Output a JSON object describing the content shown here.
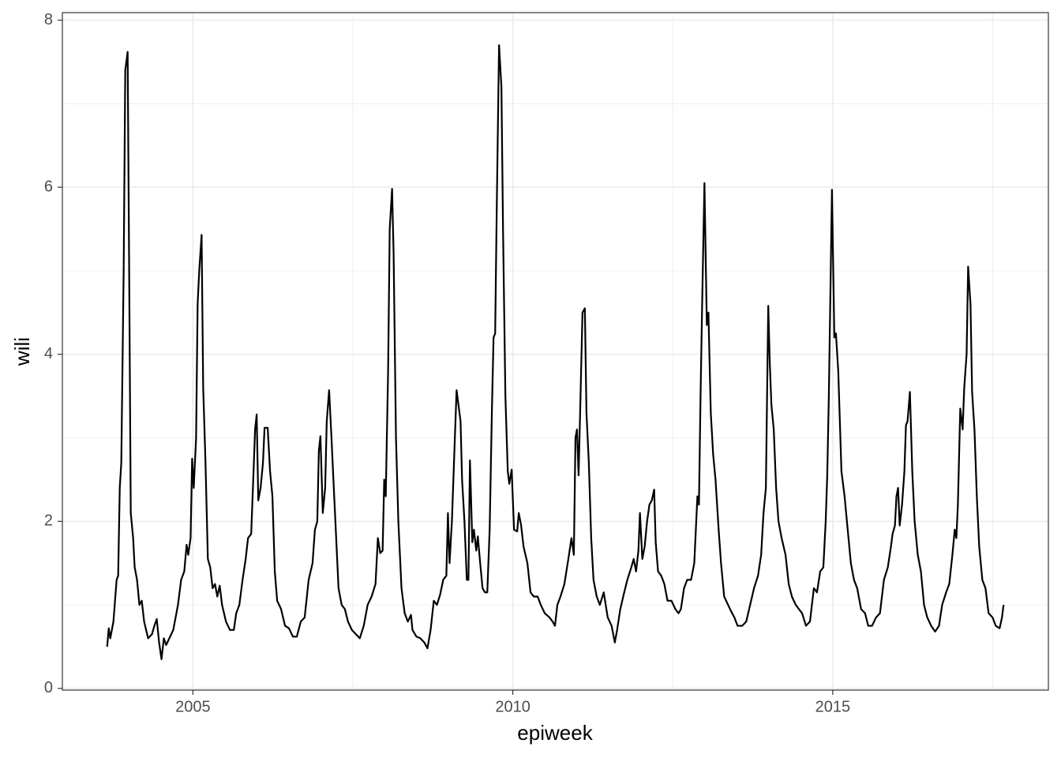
{
  "chart_data": {
    "type": "line",
    "xlabel": "epiweek",
    "ylabel": "wili",
    "color": "#000000",
    "grid": true,
    "xlim": [
      2002.96,
      2018.37
    ],
    "xticks": [
      2005,
      2010,
      2015
    ],
    "xminor": [
      2002.5,
      2007.5,
      2012.5,
      2017.5
    ],
    "ylim": [
      -0.02,
      8.09
    ],
    "yticks": [
      0,
      2,
      4,
      6,
      8
    ],
    "yminor": [
      1,
      3,
      5,
      7
    ],
    "x": [
      2003.66,
      2003.685,
      2003.709,
      2003.758,
      2003.808,
      2003.832,
      2003.857,
      2003.881,
      2003.918,
      2003.943,
      2003.98,
      2004.004,
      2004.029,
      2004.066,
      2004.09,
      2004.127,
      2004.164,
      2004.201,
      2004.238,
      2004.3,
      2004.361,
      2004.398,
      2004.435,
      2004.472,
      2004.509,
      2004.546,
      2004.582,
      2004.632,
      2004.693,
      2004.767,
      2004.816,
      2004.865,
      2004.902,
      2004.927,
      2004.964,
      2004.988,
      2005.013,
      2005.05,
      2005.074,
      2005.099,
      2005.136,
      2005.161,
      2005.197,
      2005.234,
      2005.271,
      2005.308,
      2005.345,
      2005.382,
      2005.419,
      2005.456,
      2005.517,
      2005.579,
      2005.64,
      2005.677,
      2005.726,
      2005.776,
      2005.825,
      2005.862,
      2005.911,
      2005.948,
      2005.972,
      2005.997,
      2006.022,
      2006.058,
      2006.095,
      2006.12,
      2006.169,
      2006.206,
      2006.243,
      2006.28,
      2006.317,
      2006.378,
      2006.44,
      2006.501,
      2006.563,
      2006.624,
      2006.686,
      2006.747,
      2006.809,
      2006.87,
      2006.907,
      2006.944,
      2006.969,
      2006.993,
      2007.03,
      2007.067,
      2007.092,
      2007.129,
      2007.166,
      2007.19,
      2007.227,
      2007.276,
      2007.325,
      2007.375,
      2007.424,
      2007.485,
      2007.547,
      2007.608,
      2007.67,
      2007.731,
      2007.793,
      2007.854,
      2007.891,
      2007.928,
      2007.965,
      2007.99,
      2008.014,
      2008.051,
      2008.076,
      2008.113,
      2008.137,
      2008.174,
      2008.211,
      2008.26,
      2008.31,
      2008.359,
      2008.408,
      2008.432,
      2008.494,
      2008.555,
      2008.617,
      2008.666,
      2008.715,
      2008.765,
      2008.814,
      2008.863,
      2008.912,
      2008.961,
      2008.986,
      2009.011,
      2009.048,
      2009.085,
      2009.121,
      2009.158,
      2009.183,
      2009.207,
      2009.244,
      2009.281,
      2009.306,
      2009.33,
      2009.367,
      2009.392,
      2009.429,
      2009.453,
      2009.49,
      2009.527,
      2009.564,
      2009.601,
      2009.638,
      2009.675,
      2009.699,
      2009.724,
      2009.748,
      2009.785,
      2009.822,
      2009.847,
      2009.884,
      2009.921,
      2009.945,
      2009.982,
      2010.019,
      2010.068,
      2010.093,
      2010.13,
      2010.167,
      2010.228,
      2010.277,
      2010.327,
      2010.388,
      2010.437,
      2010.499,
      2010.573,
      2010.622,
      2010.659,
      2010.696,
      2010.745,
      2010.806,
      2010.868,
      2010.917,
      2010.954,
      2010.979,
      2011.003,
      2011.028,
      2011.052,
      2011.089,
      2011.126,
      2011.151,
      2011.188,
      2011.225,
      2011.261,
      2011.311,
      2011.36,
      2011.421,
      2011.483,
      2011.544,
      2011.594,
      2011.63,
      2011.68,
      2011.741,
      2011.79,
      2011.852,
      2011.889,
      2011.926,
      2011.963,
      2011.987,
      2012.024,
      2012.061,
      2012.098,
      2012.135,
      2012.172,
      2012.209,
      2012.233,
      2012.27,
      2012.319,
      2012.368,
      2012.418,
      2012.479,
      2012.54,
      2012.59,
      2012.627,
      2012.676,
      2012.725,
      2012.786,
      2012.836,
      2012.885,
      2012.909,
      2012.934,
      2012.959,
      2012.995,
      2013.032,
      2013.057,
      2013.094,
      2013.131,
      2013.168,
      2013.217,
      2013.254,
      2013.303,
      2013.364,
      2013.414,
      2013.463,
      2013.512,
      2013.586,
      2013.648,
      2013.709,
      2013.77,
      2013.832,
      2013.881,
      2013.918,
      2013.955,
      2013.992,
      2014.016,
      2014.041,
      2014.078,
      2014.115,
      2014.152,
      2014.201,
      2014.262,
      2014.312,
      2014.361,
      2014.422,
      2014.471,
      2014.521,
      2014.582,
      2014.644,
      2014.705,
      2014.754,
      2014.804,
      2014.853,
      2014.89,
      2014.914,
      2014.939,
      2014.988,
      2015.025,
      2015.05,
      2015.086,
      2015.136,
      2015.185,
      2015.234,
      2015.283,
      2015.332,
      2015.382,
      2015.443,
      2015.505,
      2015.554,
      2015.615,
      2015.677,
      2015.738,
      2015.8,
      2015.861,
      2015.91,
      2015.935,
      2015.972,
      2015.996,
      2016.021,
      2016.046,
      2016.083,
      2016.12,
      2016.144,
      2016.169,
      2016.206,
      2016.243,
      2016.28,
      2016.329,
      2016.378,
      2016.427,
      2016.477,
      2016.538,
      2016.6,
      2016.661,
      2016.71,
      2016.772,
      2016.821,
      2016.87,
      2016.907,
      2016.932,
      2016.956,
      2016.993,
      2017.03,
      2017.055,
      2017.092,
      2017.116,
      2017.153,
      2017.178,
      2017.215,
      2017.252,
      2017.289,
      2017.338,
      2017.387,
      2017.436,
      2017.498,
      2017.547,
      2017.608,
      2017.645,
      2017.67
    ],
    "values": [
      0.5,
      0.72,
      0.6,
      0.8,
      1.3,
      1.35,
      2.4,
      2.7,
      5.0,
      7.4,
      7.62,
      5.0,
      2.1,
      1.8,
      1.45,
      1.3,
      1.0,
      1.05,
      0.8,
      0.6,
      0.65,
      0.75,
      0.83,
      0.55,
      0.35,
      0.6,
      0.52,
      0.6,
      0.7,
      1.0,
      1.3,
      1.4,
      1.72,
      1.6,
      1.8,
      2.75,
      2.4,
      3.0,
      4.6,
      5.0,
      5.43,
      3.6,
      2.7,
      1.55,
      1.45,
      1.2,
      1.25,
      1.1,
      1.23,
      1.0,
      0.8,
      0.7,
      0.7,
      0.9,
      1.0,
      1.3,
      1.55,
      1.8,
      1.85,
      2.6,
      3.1,
      3.28,
      2.25,
      2.4,
      2.7,
      3.12,
      3.12,
      2.6,
      2.3,
      1.4,
      1.05,
      0.95,
      0.75,
      0.72,
      0.62,
      0.62,
      0.8,
      0.85,
      1.3,
      1.5,
      1.9,
      2.0,
      2.85,
      3.02,
      2.1,
      2.4,
      3.2,
      3.57,
      3.0,
      2.6,
      2.0,
      1.2,
      1.0,
      0.95,
      0.8,
      0.7,
      0.65,
      0.6,
      0.75,
      1.0,
      1.1,
      1.25,
      1.8,
      1.62,
      1.65,
      2.5,
      2.3,
      3.8,
      5.5,
      5.98,
      5.2,
      3.0,
      2.0,
      1.2,
      0.9,
      0.8,
      0.88,
      0.7,
      0.62,
      0.6,
      0.55,
      0.48,
      0.7,
      1.05,
      1.0,
      1.12,
      1.3,
      1.35,
      2.1,
      1.5,
      2.0,
      2.8,
      3.57,
      3.35,
      3.2,
      2.5,
      2.0,
      1.3,
      1.3,
      2.73,
      1.75,
      1.9,
      1.65,
      1.82,
      1.5,
      1.2,
      1.15,
      1.15,
      1.9,
      3.4,
      4.2,
      4.25,
      5.7,
      7.7,
      7.2,
      5.5,
      3.5,
      2.6,
      2.45,
      2.62,
      1.9,
      1.88,
      2.1,
      1.95,
      1.7,
      1.5,
      1.15,
      1.1,
      1.1,
      1.0,
      0.9,
      0.85,
      0.8,
      0.75,
      1.0,
      1.1,
      1.25,
      1.55,
      1.8,
      1.6,
      3.0,
      3.1,
      2.55,
      3.3,
      4.5,
      4.55,
      3.3,
      2.7,
      1.8,
      1.3,
      1.1,
      1.0,
      1.15,
      0.85,
      0.75,
      0.55,
      0.7,
      0.95,
      1.15,
      1.3,
      1.45,
      1.55,
      1.4,
      1.65,
      2.1,
      1.55,
      1.7,
      2.0,
      2.2,
      2.25,
      2.38,
      1.75,
      1.4,
      1.35,
      1.25,
      1.05,
      1.05,
      0.95,
      0.9,
      0.95,
      1.2,
      1.3,
      1.3,
      1.5,
      2.3,
      2.2,
      3.5,
      4.6,
      6.05,
      4.35,
      4.5,
      3.3,
      2.8,
      2.5,
      1.9,
      1.5,
      1.1,
      1.0,
      0.92,
      0.85,
      0.75,
      0.75,
      0.8,
      1.0,
      1.2,
      1.35,
      1.6,
      2.1,
      2.4,
      4.58,
      3.9,
      3.4,
      3.1,
      2.4,
      2.0,
      1.8,
      1.6,
      1.25,
      1.1,
      1.0,
      0.95,
      0.9,
      0.75,
      0.8,
      1.2,
      1.15,
      1.4,
      1.45,
      2.0,
      2.55,
      3.5,
      5.97,
      4.2,
      4.25,
      3.8,
      2.6,
      2.3,
      1.9,
      1.5,
      1.3,
      1.2,
      0.95,
      0.9,
      0.75,
      0.75,
      0.85,
      0.9,
      1.3,
      1.45,
      1.7,
      1.85,
      1.95,
      2.3,
      2.4,
      1.95,
      2.2,
      2.6,
      3.15,
      3.2,
      3.55,
      2.6,
      2.0,
      1.6,
      1.4,
      1.0,
      0.85,
      0.75,
      0.68,
      0.75,
      1.0,
      1.15,
      1.25,
      1.6,
      1.9,
      1.8,
      2.2,
      3.35,
      3.1,
      3.6,
      4.0,
      5.05,
      4.6,
      3.55,
      3.1,
      2.3,
      1.7,
      1.3,
      1.2,
      0.9,
      0.85,
      0.75,
      0.72,
      0.85,
      1.0
    ]
  }
}
